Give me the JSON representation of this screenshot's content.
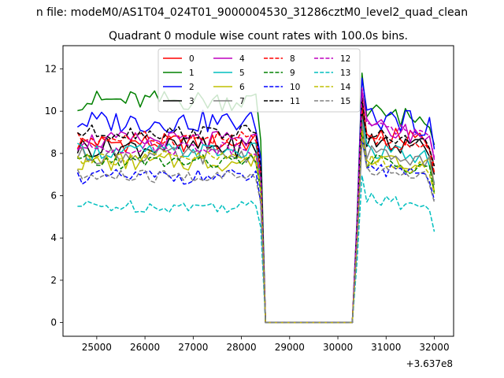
{
  "chart_data": {
    "type": "line",
    "suptitle": "n file: modeM0/AS1T04_024T01_9000004530_31286cztM0_level2_quad_clean",
    "title": "Quadrant 0 module wise count rates with 100.0s bins.",
    "xlabel": "",
    "ylabel": "",
    "offset_label": "+3.637e8",
    "xlim": [
      24300,
      32400
    ],
    "ylim": [
      -0.65,
      13.1
    ],
    "xticks": [
      25000,
      26000,
      27000,
      28000,
      29000,
      30000,
      31000,
      32000
    ],
    "yticks": [
      0,
      2,
      4,
      6,
      8,
      10,
      12
    ],
    "grid": false,
    "legend_position": "top-center",
    "legend_columns": 4,
    "x_start": 24600,
    "x_step": 100,
    "series": [
      {
        "name": "0",
        "color": "#ff0000",
        "dash": "solid",
        "base": 8.5,
        "amp": 0.45,
        "post": 9.0
      },
      {
        "name": "1",
        "color": "#008000",
        "dash": "solid",
        "base": 10.5,
        "amp": 0.5,
        "post": 10.0
      },
      {
        "name": "2",
        "color": "#0000ff",
        "dash": "solid",
        "base": 9.5,
        "amp": 0.55,
        "post": 9.8
      },
      {
        "name": "3",
        "color": "#000000",
        "dash": "solid",
        "base": 8.3,
        "amp": 0.5,
        "post": 8.6
      },
      {
        "name": "4",
        "color": "#bf00bf",
        "dash": "solid",
        "base": 8.6,
        "amp": 0.45,
        "post": 9.3
      },
      {
        "name": "5",
        "color": "#00bfbf",
        "dash": "solid",
        "base": 8.1,
        "amp": 0.4,
        "post": 8.2
      },
      {
        "name": "6",
        "color": "#bfbf00",
        "dash": "solid",
        "base": 7.6,
        "amp": 0.45,
        "post": 7.8
      },
      {
        "name": "7",
        "color": "#808080",
        "dash": "solid",
        "base": 7.9,
        "amp": 0.4,
        "post": 8.1
      },
      {
        "name": "8",
        "color": "#ff0000",
        "dash": "dashed",
        "base": 8.7,
        "amp": 0.35,
        "post": 8.7
      },
      {
        "name": "9",
        "color": "#008000",
        "dash": "dashed",
        "base": 7.6,
        "amp": 0.35,
        "post": 7.7
      },
      {
        "name": "10",
        "color": "#0000ff",
        "dash": "dashed",
        "base": 6.9,
        "amp": 0.35,
        "post": 7.4
      },
      {
        "name": "11",
        "color": "#000000",
        "dash": "dashed",
        "base": 9.0,
        "amp": 0.35,
        "post": 9.0
      },
      {
        "name": "12",
        "color": "#bf00bf",
        "dash": "dashed",
        "base": 8.3,
        "amp": 0.35,
        "post": 9.4
      },
      {
        "name": "13",
        "color": "#00bfbf",
        "dash": "dashed",
        "base": 5.5,
        "amp": 0.3,
        "post": 5.9
      },
      {
        "name": "14",
        "color": "#bfbf00",
        "dash": "dashed",
        "base": 7.8,
        "amp": 0.35,
        "post": 7.7
      },
      {
        "name": "15",
        "color": "#808080",
        "dash": "dashed",
        "base": 6.9,
        "amp": 0.35,
        "post": 7.3
      }
    ]
  }
}
